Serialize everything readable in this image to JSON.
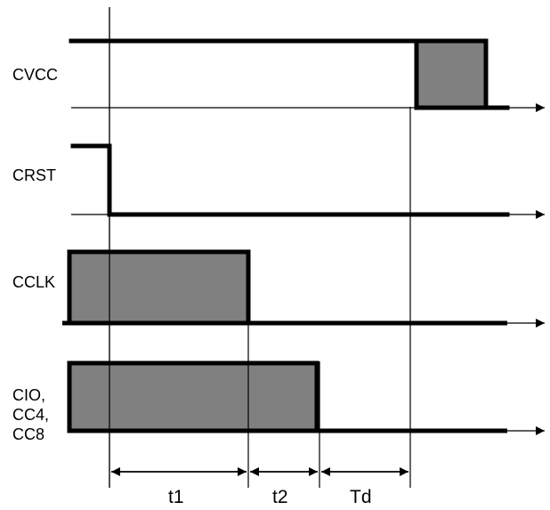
{
  "colors": {
    "fill": "#808080",
    "line": "#000000"
  },
  "signals": {
    "cvcc": "CVCC",
    "crst": "CRST",
    "cclk": "CCLK",
    "cio_line1": "CIO,",
    "cio_line2": "CC4,",
    "cio_line3": "CC8"
  },
  "intervals": {
    "t1": "t1",
    "t2": "t2",
    "td": "Td"
  }
}
